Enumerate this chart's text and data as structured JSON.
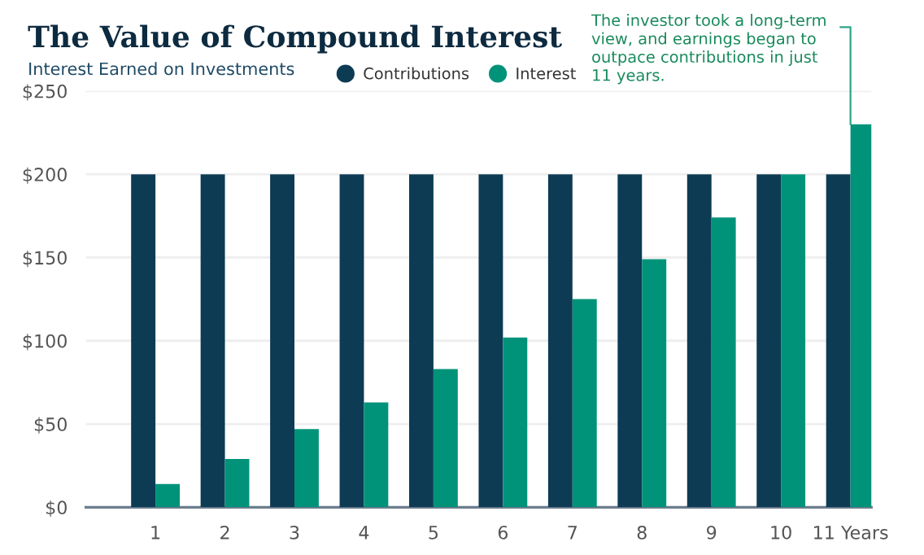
{
  "chart_data": {
    "type": "bar",
    "title": "The Value of Compound Interest",
    "subtitle": "Interest Earned on Investments",
    "categories": [
      "1",
      "2",
      "3",
      "4",
      "5",
      "6",
      "7",
      "8",
      "9",
      "10",
      "11 Years"
    ],
    "series": [
      {
        "name": "Contributions",
        "color": "#0d3b54",
        "values": [
          200,
          200,
          200,
          200,
          200,
          200,
          200,
          200,
          200,
          200,
          200
        ]
      },
      {
        "name": "Interest",
        "color": "#00937a",
        "values": [
          14,
          29,
          47,
          63,
          83,
          102,
          125,
          149,
          174,
          200,
          230
        ]
      }
    ],
    "ylim": [
      0,
      250
    ],
    "yticks": [
      {
        "value": 0,
        "label": "$0"
      },
      {
        "value": 50,
        "label": "$50"
      },
      {
        "value": 100,
        "label": "$100"
      },
      {
        "value": 150,
        "label": "$150"
      },
      {
        "value": 200,
        "label": "$200"
      },
      {
        "value": 250,
        "label": "$250"
      }
    ],
    "grid": "y",
    "legend": "top",
    "annotations": [
      {
        "text": "The investor took a long-term\nview, and earnings began to\noutpace contributions in just\n11 years.",
        "x": "11 Years",
        "y": 230
      }
    ]
  }
}
